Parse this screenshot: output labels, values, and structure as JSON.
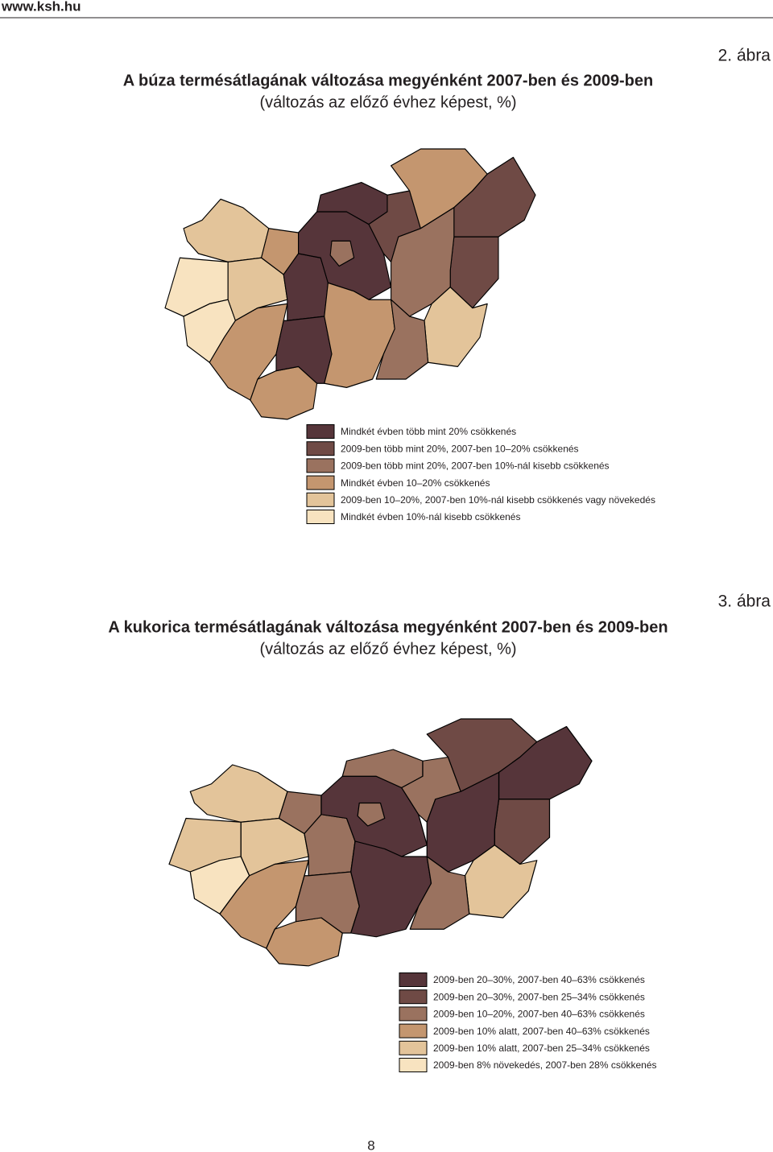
{
  "header": {
    "site": "www.ksh.hu"
  },
  "figures": [
    {
      "label": "2. ábra",
      "title": "A búza termésátlagának változása megyénként 2007-ben és 2009-ben",
      "subtitle": "(változás az előző évhez képest, %)",
      "legend": [
        {
          "label": "Mindkét évben több mint 20% csökkenés",
          "color": "#56353a"
        },
        {
          "label": "2009-ben több mint 20%, 2007-ben 10–20% csökkenés",
          "color": "#6f4a45"
        },
        {
          "label": "2009-ben több mint 20%, 2007-ben 10%-nál kisebb csökkenés",
          "color": "#9a725f"
        },
        {
          "label": "Mindkét évben 10–20% csökkenés",
          "color": "#c4966f"
        },
        {
          "label": "2009-ben 10–20%, 2007-ben 10%-nál kisebb csökkenés vagy növekedés",
          "color": "#e3c49a"
        },
        {
          "label": "Mindkét évben 10%-nál kisebb csökkenés",
          "color": "#f8e3c0"
        }
      ]
    },
    {
      "label": "3. ábra",
      "title": "A kukorica termésátlagának változása megyénként 2007-ben és 2009-ben",
      "subtitle": "(változás az előző évhez képest, %)",
      "legend": [
        {
          "label": "2009-ben 20–30%, 2007-ben 40–63% csökkenés",
          "color": "#56353a"
        },
        {
          "label": "2009-ben 20–30%, 2007-ben 25–34% csökkenés",
          "color": "#6f4a45"
        },
        {
          "label": "2009-ben 10–20%, 2007-ben 40–63% csökkenés",
          "color": "#9a725f"
        },
        {
          "label": "2009-ben 10% alatt, 2007-ben 40–63% csökkenés",
          "color": "#c4966f"
        },
        {
          "label": "2009-ben 10% alatt, 2007-ben 25–34% csökkenés",
          "color": "#e3c49a"
        },
        {
          "label": "2009-ben 8% növekedés, 2007-ben 28% csökkenés",
          "color": "#f8e3c0"
        }
      ]
    }
  ],
  "footer": {
    "page": "8"
  }
}
